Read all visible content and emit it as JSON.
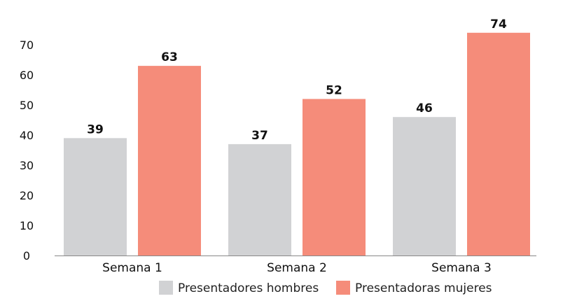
{
  "chart_data": {
    "type": "bar",
    "categories": [
      "Semana 1",
      "Semana 2",
      "Semana 3"
    ],
    "series": [
      {
        "name": "Presentadores hombres",
        "values": [
          39,
          37,
          46
        ],
        "color": "#d1d2d4"
      },
      {
        "name": "Presentadoras mujeres",
        "values": [
          63,
          52,
          74
        ],
        "color": "#f58c7a"
      }
    ],
    "y_ticks": [
      0,
      10,
      20,
      30,
      40,
      50,
      60,
      70
    ],
    "ylim": [
      0,
      80
    ],
    "title": "",
    "xlabel": "",
    "ylabel": "",
    "grid": false,
    "legend_position": "bottom"
  }
}
